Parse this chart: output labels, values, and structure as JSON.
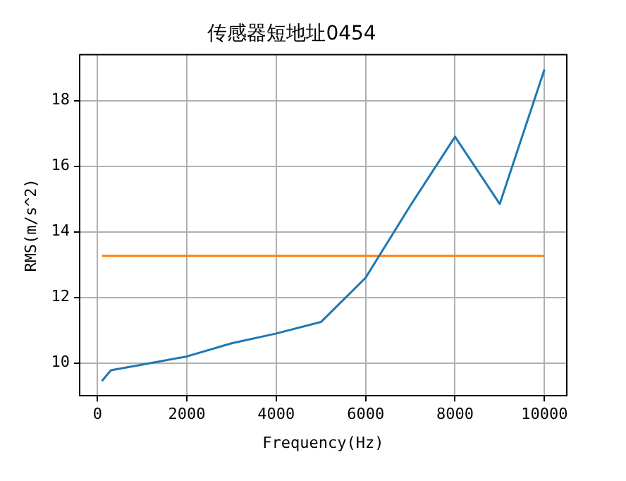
{
  "chart_data": {
    "type": "line",
    "title": "传感器短地址0454",
    "xlabel": "Frequency(Hz)",
    "ylabel": "RMS(m/s^2)",
    "xlim": [
      -400,
      10500
    ],
    "ylim": [
      9.0,
      19.4
    ],
    "xticks": [
      0,
      2000,
      4000,
      6000,
      8000,
      10000
    ],
    "yticks": [
      10,
      12,
      14,
      16,
      18
    ],
    "grid": true,
    "series": [
      {
        "color": "#1f77b4",
        "x": [
          100,
          300,
          1000,
          2000,
          3000,
          4000,
          5000,
          6000,
          7000,
          8000,
          9000,
          10000
        ],
        "values": [
          9.45,
          9.78,
          9.95,
          10.2,
          10.6,
          10.9,
          11.25,
          12.6,
          14.8,
          16.9,
          14.85,
          18.95
        ]
      },
      {
        "color": "#ff7f0e",
        "x": [
          100,
          10000
        ],
        "values": [
          13.27,
          13.27
        ]
      }
    ]
  }
}
